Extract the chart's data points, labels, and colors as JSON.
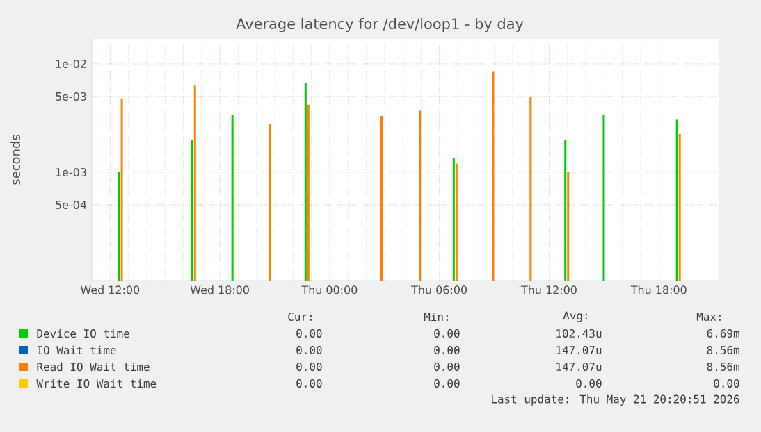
{
  "chart_data": {
    "type": "bar",
    "title": "Average latency for /dev/loop1 - by day",
    "ylabel": "seconds",
    "x": [
      "2026-05-20T12:36",
      "2026-05-20T16:36",
      "2026-05-20T18:48",
      "2026-05-20T20:42",
      "2026-05-20T22:48",
      "2026-05-21T02:48",
      "2026-05-21T04:54",
      "2026-05-21T06:54",
      "2026-05-21T08:54",
      "2026-05-21T10:57",
      "2026-05-21T13:00",
      "2026-05-21T15:06",
      "2026-05-21T19:06"
    ],
    "series": [
      {
        "name": "Device IO time",
        "color": "#00cc00",
        "values": [
          0.001,
          0.002,
          0.0034,
          null,
          0.00669,
          null,
          null,
          0.00135,
          null,
          null,
          0.002,
          0.0034,
          0.00305
        ]
      },
      {
        "name": "IO Wait time",
        "color": "#0066b3",
        "values": [
          null,
          null,
          null,
          null,
          null,
          null,
          null,
          null,
          null,
          null,
          null,
          null,
          null
        ]
      },
      {
        "name": "Read IO Wait time",
        "color": "#ff8000",
        "values": [
          0.0048,
          0.0063,
          null,
          0.0028,
          0.0042,
          0.0033,
          0.0037,
          0.0012,
          0.00856,
          0.005,
          0.001,
          null,
          0.00225
        ]
      },
      {
        "name": "Write IO Wait time",
        "color": "#ffcc00",
        "values": [
          null,
          null,
          null,
          null,
          null,
          null,
          null,
          null,
          null,
          null,
          null,
          null,
          null
        ]
      }
    ],
    "log": "y",
    "xlim": [
      "2026-05-20T11:00",
      "2026-05-21T21:18"
    ],
    "ylim": [
      0.0001,
      0.017
    ],
    "xticks": [
      {
        "value": "2026-05-20T12:00",
        "label": "Wed 12:00"
      },
      {
        "value": "2026-05-20T18:00",
        "label": "Wed 18:00"
      },
      {
        "value": "2026-05-21T00:00",
        "label": "Thu 00:00"
      },
      {
        "value": "2026-05-21T06:00",
        "label": "Thu 06:00"
      },
      {
        "value": "2026-05-21T12:00",
        "label": "Thu 12:00"
      },
      {
        "value": "2026-05-21T18:00",
        "label": "Thu 18:00"
      }
    ],
    "yticks": [
      {
        "value": 0.0005,
        "label": "5e-04"
      },
      {
        "value": 0.001,
        "label": "1e-03"
      },
      {
        "value": 0.005,
        "label": "5e-03"
      },
      {
        "value": 0.01,
        "label": "1e-02"
      }
    ],
    "grid": true,
    "legend": "bottom",
    "annotations": [
      "Cur:",
      "Min:",
      "Avg:",
      "Max:",
      "0.00",
      "0.00",
      "102.43u",
      "6.69m",
      "0.00",
      "0.00",
      "147.07u",
      "8.56m",
      "0.00",
      "0.00",
      "147.07u",
      "8.56m",
      "0.00",
      "0.00",
      "0.00",
      "0.00",
      "Last update: Thu May 21 20:20:51 2026"
    ]
  }
}
